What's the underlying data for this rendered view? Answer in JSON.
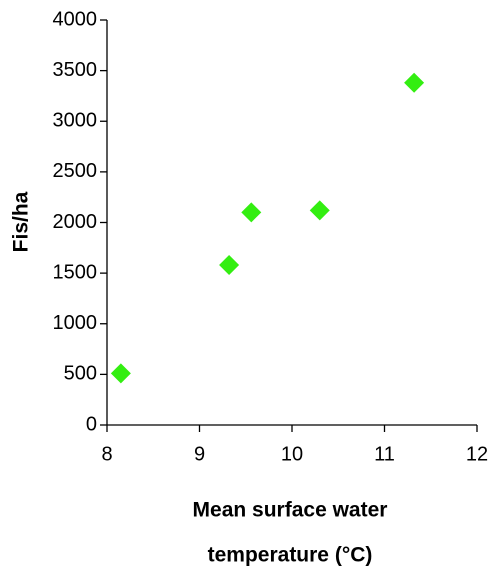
{
  "chart_data": {
    "type": "scatter",
    "x_label": [
      "Mean surface water",
      "temperature (°C)"
    ],
    "y_label": "Fis/ha",
    "x": [
      8.15,
      9.32,
      9.56,
      10.3,
      11.32
    ],
    "values": [
      510,
      1580,
      2100,
      2120,
      3380
    ],
    "color": "#33ee11",
    "xlim": [
      8,
      12
    ],
    "xticks": [
      8,
      9,
      10,
      11,
      12
    ],
    "ylim": [
      0,
      4000
    ],
    "yticks": [
      0,
      500,
      1000,
      1500,
      2000,
      2500,
      3000,
      3500,
      4000
    ],
    "grid": false
  }
}
